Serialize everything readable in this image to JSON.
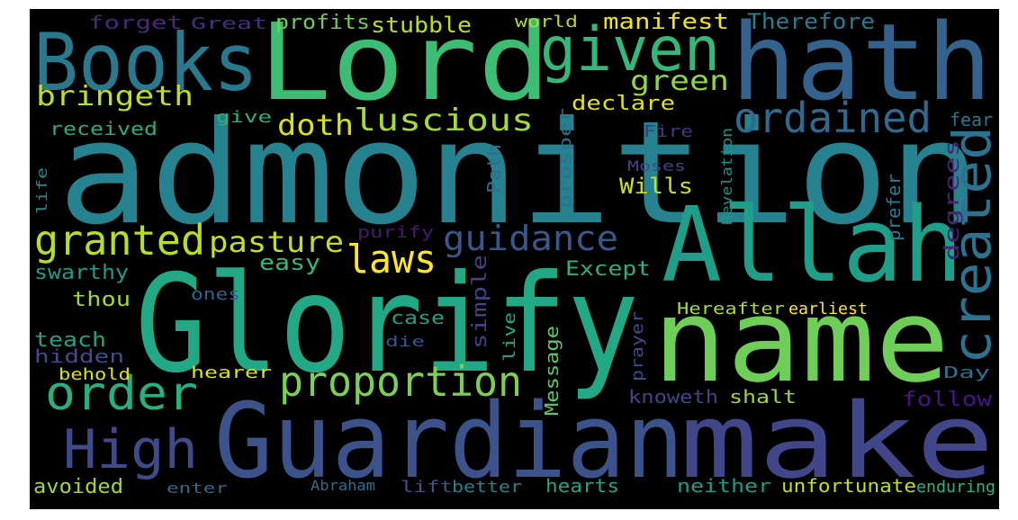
{
  "canvas": {
    "background": "#ffffff",
    "panel": "#000000"
  },
  "words": [
    {
      "text": "admonition",
      "color": "#26828e"
    },
    {
      "text": "Lord",
      "color": "#3dbc74"
    },
    {
      "text": "hath",
      "color": "#33638d"
    },
    {
      "text": "Books",
      "color": "#2a788e"
    },
    {
      "text": "given",
      "color": "#35b779"
    },
    {
      "text": "Allah",
      "color": "#1f9e89"
    },
    {
      "text": "Glorify",
      "color": "#22a884"
    },
    {
      "text": "name",
      "color": "#6ece58"
    },
    {
      "text": "Guardian",
      "color": "#3b528b"
    },
    {
      "text": "make",
      "color": "#404688"
    },
    {
      "text": "created",
      "color": "#2c728e"
    },
    {
      "text": "ordained",
      "color": "#31688e"
    },
    {
      "text": "High",
      "color": "#3e4a89"
    },
    {
      "text": "order",
      "color": "#29af7f"
    },
    {
      "text": "proportion",
      "color": "#7ad151"
    },
    {
      "text": "granted",
      "color": "#b5de2b"
    },
    {
      "text": "laws",
      "color": "#fde725"
    },
    {
      "text": "guidance",
      "color": "#38588c"
    },
    {
      "text": "pasture",
      "color": "#c2df23"
    },
    {
      "text": "luscious",
      "color": "#a5db36"
    },
    {
      "text": "doth",
      "color": "#d8e219"
    },
    {
      "text": "bringeth",
      "color": "#bddf26"
    },
    {
      "text": "green",
      "color": "#8ed645"
    },
    {
      "text": "manifest",
      "color": "#f1e51d"
    },
    {
      "text": "Therefore",
      "color": "#287c8e"
    },
    {
      "text": "profits",
      "color": "#6ccd5a"
    },
    {
      "text": "stubble",
      "color": "#bade28"
    },
    {
      "text": "forget",
      "color": "#482878"
    },
    {
      "text": "Great",
      "color": "#46307e"
    },
    {
      "text": "world",
      "color": "#addc30"
    },
    {
      "text": "declare",
      "color": "#e2e418"
    },
    {
      "text": "give",
      "color": "#2fb47c"
    },
    {
      "text": "received",
      "color": "#27ad81"
    },
    {
      "text": "fear",
      "color": "#2a768e"
    },
    {
      "text": "Fire",
      "color": "#453781"
    },
    {
      "text": "degrees",
      "color": "#482475"
    },
    {
      "text": "prosper",
      "color": "#2d708e"
    },
    {
      "text": "Path",
      "color": "#2e6e8e"
    },
    {
      "text": "Moses",
      "color": "#3f4788"
    },
    {
      "text": "Revelation",
      "color": "#21918c"
    },
    {
      "text": "Wills",
      "color": "#c8e020"
    },
    {
      "text": "life",
      "color": "#23898e"
    },
    {
      "text": "prefer",
      "color": "#297a8e"
    },
    {
      "text": "purify",
      "color": "#481a6c"
    },
    {
      "text": "easy",
      "color": "#37b878"
    },
    {
      "text": "swarthy",
      "color": "#1e9b8a"
    },
    {
      "text": "Except",
      "color": "#2ab07f"
    },
    {
      "text": "simple",
      "color": "#414487"
    },
    {
      "text": "thou",
      "color": "#a0da39"
    },
    {
      "text": "ones",
      "color": "#34618d"
    },
    {
      "text": "case",
      "color": "#1fa188"
    },
    {
      "text": "Hereafter",
      "color": "#a8db34"
    },
    {
      "text": "earliest",
      "color": "#fde725"
    },
    {
      "text": "teach",
      "color": "#1fa287"
    },
    {
      "text": "Message",
      "color": "#5ec962"
    },
    {
      "text": "prayer",
      "color": "#3e4c8a"
    },
    {
      "text": "live",
      "color": "#24aa83"
    },
    {
      "text": "die",
      "color": "#3a548c"
    },
    {
      "text": "hidden",
      "color": "#3d4e8a"
    },
    {
      "text": "behold",
      "color": "#dde318"
    },
    {
      "text": "hearer",
      "color": "#dae319"
    },
    {
      "text": "Day",
      "color": "#2c738e"
    },
    {
      "text": "knoweth",
      "color": "#404588"
    },
    {
      "text": "shalt",
      "color": "#9dd93b"
    },
    {
      "text": "follow",
      "color": "#4a1486"
    },
    {
      "text": "avoided",
      "color": "#9bd93c"
    },
    {
      "text": "enter",
      "color": "#30698e"
    },
    {
      "text": "Abraham",
      "color": "#2f6c8e"
    },
    {
      "text": "lift",
      "color": "#3a538b"
    },
    {
      "text": "better",
      "color": "#25838e"
    },
    {
      "text": "hearts",
      "color": "#21a585"
    },
    {
      "text": "neither",
      "color": "#1e9c89"
    },
    {
      "text": "unfortunate",
      "color": "#c0df25"
    },
    {
      "text": "enduring",
      "color": "#2eb37c"
    }
  ]
}
